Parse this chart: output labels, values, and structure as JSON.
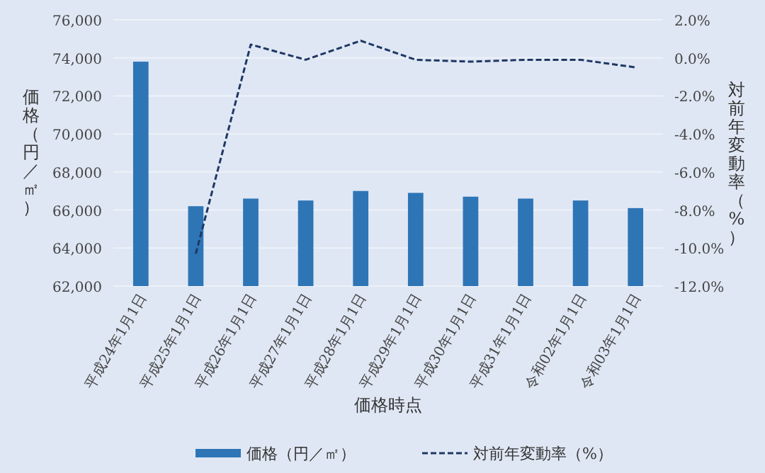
{
  "chart_data": {
    "type": "bar",
    "xlabel": "価格時点",
    "ylabel": "価格（円／㎡）",
    "y2label": "対前年変動率（%）",
    "categories": [
      "平成24年1月1日",
      "平成25年1月1日",
      "平成26年1月1日",
      "平成27年1月1日",
      "平成28年1月1日",
      "平成29年1月1日",
      "平成30年1月1日",
      "平成31年1月1日",
      "令和02年1月1日",
      "令和03年1月1日"
    ],
    "series": [
      {
        "name": "価格（円／㎡）",
        "color": "#2e75b6",
        "values": [
          73800,
          66200,
          66600,
          66500,
          67000,
          66900,
          66700,
          66600,
          66500,
          66100
        ]
      },
      {
        "name": "対前年変動率（%）",
        "type": "line",
        "axis": "y2",
        "color": "#1f3864",
        "line_style": "dashed",
        "values": [
          null,
          -10.3,
          0.7,
          -0.1,
          0.9,
          -0.1,
          -0.2,
          -0.1,
          -0.1,
          -0.5
        ]
      }
    ],
    "ylim": [
      62000,
      76000
    ],
    "yticks": [
      {
        "value": 62000,
        "label": "62,000"
      },
      {
        "value": 64000,
        "label": "64,000"
      },
      {
        "value": 66000,
        "label": "66,000"
      },
      {
        "value": 68000,
        "label": "68,000"
      },
      {
        "value": 70000,
        "label": "70,000"
      },
      {
        "value": 72000,
        "label": "72,000"
      },
      {
        "value": 74000,
        "label": "74,000"
      },
      {
        "value": 76000,
        "label": "76,000"
      }
    ],
    "y2lim": [
      -12,
      2
    ],
    "y2ticks": [
      {
        "value": -12,
        "label": "-12.0%"
      },
      {
        "value": -10,
        "label": "-10.0%"
      },
      {
        "value": -8,
        "label": "-8.0%"
      },
      {
        "value": -6,
        "label": "-6.0%"
      },
      {
        "value": -4,
        "label": "-4.0%"
      },
      {
        "value": -2,
        "label": "-2.0%"
      },
      {
        "value": 0,
        "label": "0.0%"
      },
      {
        "value": 2,
        "label": "2.0%"
      }
    ],
    "grid": "y",
    "legend": "bottom"
  }
}
